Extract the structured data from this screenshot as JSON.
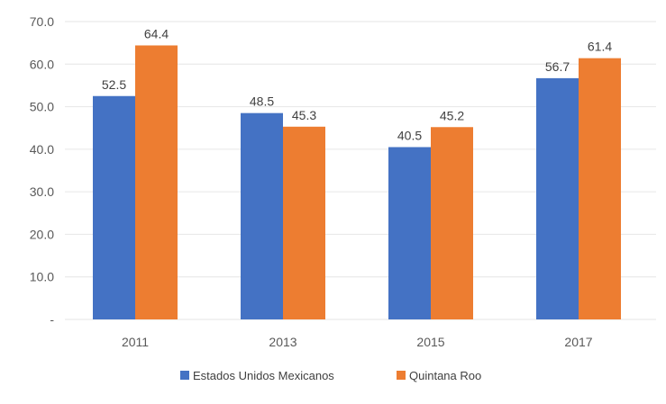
{
  "chart_data": {
    "type": "bar",
    "categories": [
      "2011",
      "2013",
      "2015",
      "2017"
    ],
    "series": [
      {
        "name": "Estados Unidos Mexicanos",
        "values": [
          52.5,
          48.5,
          40.5,
          56.7
        ],
        "color": "#4472c4"
      },
      {
        "name": "Quintana Roo",
        "values": [
          64.4,
          45.3,
          45.2,
          61.4
        ],
        "color": "#ed7d31"
      }
    ],
    "data_labels": [
      [
        "52.5",
        "48.5",
        "40.5",
        "56.7"
      ],
      [
        "64.4",
        "45.3",
        "45.2",
        "61.4"
      ]
    ],
    "y_ticks": [
      "-",
      "10.0",
      "20.0",
      "30.0",
      "40.0",
      "50.0",
      "60.0",
      "70.0"
    ],
    "ylim": [
      0,
      70
    ],
    "title": "",
    "xlabel": "",
    "ylabel": "",
    "grid": true,
    "legend_position": "bottom"
  }
}
